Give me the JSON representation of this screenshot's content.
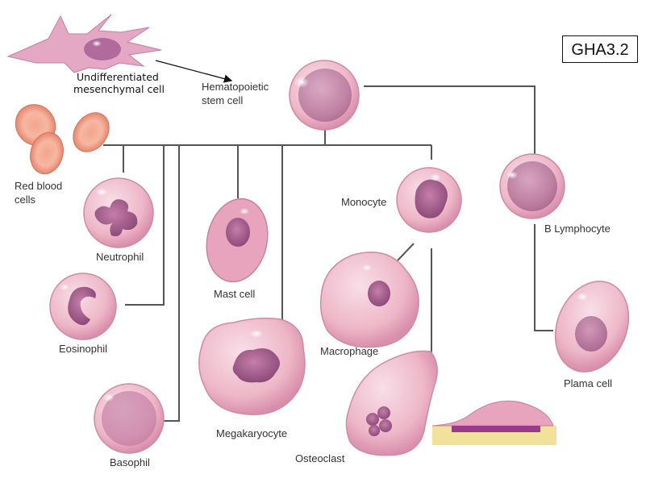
{
  "figure_code": "GHA3.2",
  "labels": {
    "mesenchymal_line1": "Undifferentiated",
    "mesenchymal_line2": "mesenchymal  cell",
    "hsc_line1": "Hematopoietic",
    "hsc_line2": "stem cell",
    "rbc_line1": "Red blood",
    "rbc_line2": "cells",
    "neutrophil": "Neutrophil",
    "eosinophil": "Eosinophil",
    "basophil": "Basophil",
    "mast_cell": "Mast cell",
    "megakaryocyte": "Megakaryocyte",
    "monocyte": "Monocyte",
    "macrophage": "Macrophage",
    "osteoclast": "Osteoclast",
    "b_lymphocyte": "B Lymphocyte",
    "plasma_cell": "Plama cell"
  },
  "colors": {
    "cell_fill": "#eeb7c8",
    "cell_edge": "#c9849c",
    "nucleus": "#a45a8a",
    "rbc": "#ef8f76",
    "line": "#555555",
    "bone": "#f0e29a",
    "ruffled_border": "#9b3a8c"
  }
}
